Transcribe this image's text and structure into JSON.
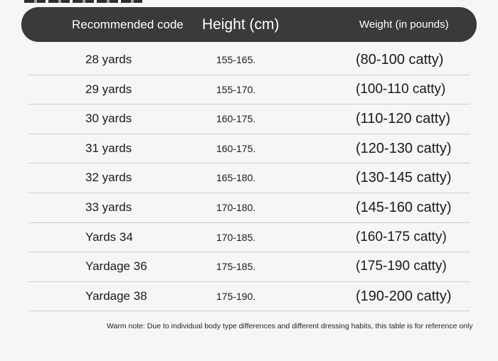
{
  "header": {
    "code_label": "Recommended code",
    "height_label": "Height (cm)",
    "weight_label": "Weight (in pounds)"
  },
  "rows": [
    {
      "code": "28 yards",
      "height": "155-165.",
      "weight": "(80-100 catty)"
    },
    {
      "code": "29 yards",
      "height": "155-170.",
      "weight": "(100-110 catty)"
    },
    {
      "code": "30 yards",
      "height": "160-175.",
      "weight": "(110-120 catty)"
    },
    {
      "code": "31 yards",
      "height": "160-175.",
      "weight": "(120-130 catty)"
    },
    {
      "code": "32 yards",
      "height": "165-180.",
      "weight": "(130-145 catty)"
    },
    {
      "code": "33 yards",
      "height": "170-180.",
      "weight": "(145-160 catty)"
    },
    {
      "code": "Yards 34",
      "height": "170-185.",
      "weight": "(160-175 catty)"
    },
    {
      "code": "Yardage 36",
      "height": "175-185.",
      "weight": "(175-190 catty)"
    },
    {
      "code": "Yardage 38",
      "height": "175-190.",
      "weight": "(190-200 catty)"
    }
  ],
  "note": "Warm note: Due to individual body type differences and different dressing habits, this table is for reference only",
  "colors": {
    "header_bg": "#3a3a3a",
    "page_bg": "#f6f6f6",
    "divider": "#cfcfcf"
  }
}
